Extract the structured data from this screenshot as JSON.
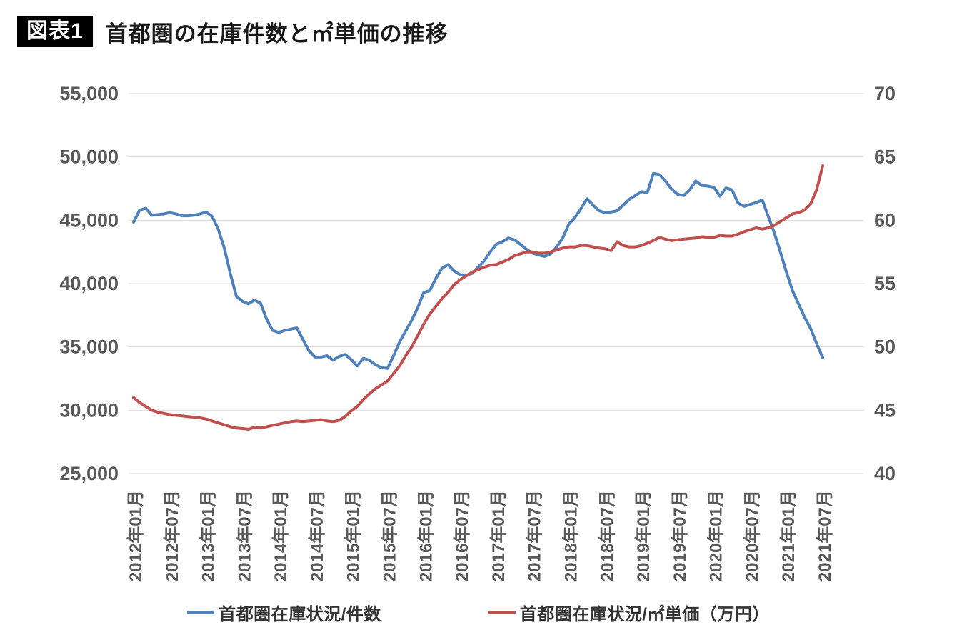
{
  "header": {
    "badge": "図表1",
    "title": "首都圏の在庫件数と㎡単価の推移"
  },
  "colors": {
    "background": "#ffffff",
    "grid": "#d9d9d9",
    "axis_text": "#595959",
    "badge_bg": "#000000",
    "badge_text": "#ffffff",
    "legend_text": "#333333",
    "series_blue": "#4F81BD",
    "series_red": "#C0504D"
  },
  "chart_data": {
    "type": "line",
    "title": "首都圏の在庫件数と㎡単価の推移",
    "x_unit": "month",
    "x_start": "2012年01月",
    "x_end": "2021年07月",
    "grid": "horizontal",
    "legend_position": "bottom",
    "x_tick_labels": [
      "2012年01月",
      "2012年07月",
      "2013年01月",
      "2013年07月",
      "2014年01月",
      "2014年07月",
      "2015年01月",
      "2015年07月",
      "2016年01月",
      "2016年07月",
      "2017年01月",
      "2017年07月",
      "2018年01月",
      "2018年07月",
      "2019年01月",
      "2019年07月",
      "2020年01月",
      "2020年07月",
      "2021年01月",
      "2021年07月"
    ],
    "left_axis": {
      "min": 25000,
      "max": 55000,
      "step": 5000,
      "tick_labels": [
        "55,000",
        "50,000",
        "45,000",
        "40,000",
        "35,000",
        "30,000",
        "25,000"
      ]
    },
    "right_axis": {
      "min": 40,
      "max": 70,
      "step": 5,
      "tick_labels": [
        "70",
        "65",
        "60",
        "55",
        "50",
        "45",
        "40"
      ]
    },
    "series": [
      {
        "name": "首都圏在庫状況/件数",
        "axis": "left",
        "color": "#4F81BD",
        "values": [
          44850,
          45800,
          45950,
          45400,
          45450,
          45500,
          45600,
          45500,
          45350,
          45350,
          45400,
          45500,
          45650,
          45300,
          44300,
          42800,
          40800,
          39000,
          38600,
          38400,
          38700,
          38450,
          37200,
          36300,
          36150,
          36300,
          36400,
          36500,
          35600,
          34700,
          34200,
          34200,
          34300,
          33950,
          34250,
          34400,
          34000,
          33500,
          34100,
          33950,
          33600,
          33350,
          33300,
          34300,
          35400,
          36250,
          37100,
          38100,
          39300,
          39450,
          40400,
          41200,
          41500,
          41000,
          40700,
          40650,
          40800,
          41300,
          41800,
          42500,
          43100,
          43300,
          43600,
          43450,
          43100,
          42700,
          42400,
          42250,
          42150,
          42350,
          42900,
          43600,
          44700,
          45200,
          45900,
          46700,
          46200,
          45750,
          45600,
          45650,
          45750,
          46200,
          46650,
          46950,
          47250,
          47200,
          48700,
          48600,
          48100,
          47450,
          47050,
          46950,
          47400,
          48100,
          47750,
          47700,
          47600,
          46900,
          47550,
          47400,
          46350,
          46100,
          46250,
          46400,
          46600,
          45300,
          44000,
          42500,
          40900,
          39450,
          38400,
          37350,
          36450,
          35250,
          34150
        ]
      },
      {
        "name": "首都圏在庫状況/㎡単価（万円）",
        "axis": "right",
        "color": "#C0504D",
        "values": [
          46.0,
          45.6,
          45.3,
          45.0,
          44.85,
          44.75,
          44.65,
          44.6,
          44.55,
          44.5,
          44.45,
          44.4,
          44.3,
          44.15,
          44.0,
          43.85,
          43.7,
          43.6,
          43.55,
          43.5,
          43.65,
          43.6,
          43.7,
          43.8,
          43.9,
          44.0,
          44.1,
          44.15,
          44.1,
          44.15,
          44.2,
          44.25,
          44.15,
          44.1,
          44.2,
          44.5,
          44.95,
          45.3,
          45.85,
          46.3,
          46.7,
          47.0,
          47.3,
          47.9,
          48.5,
          49.3,
          50.0,
          50.9,
          51.8,
          52.6,
          53.2,
          53.8,
          54.3,
          54.9,
          55.3,
          55.6,
          55.9,
          56.1,
          56.3,
          56.45,
          56.5,
          56.7,
          56.9,
          57.2,
          57.35,
          57.5,
          57.5,
          57.4,
          57.4,
          57.5,
          57.65,
          57.8,
          57.9,
          57.9,
          58.0,
          58.0,
          57.9,
          57.8,
          57.75,
          57.6,
          58.3,
          58.0,
          57.9,
          57.9,
          58.0,
          58.2,
          58.4,
          58.65,
          58.5,
          58.4,
          58.45,
          58.5,
          58.55,
          58.6,
          58.7,
          58.65,
          58.65,
          58.8,
          58.75,
          58.75,
          58.9,
          59.1,
          59.25,
          59.4,
          59.3,
          59.4,
          59.6,
          59.9,
          60.2,
          60.5,
          60.6,
          60.8,
          61.3,
          62.4,
          64.3
        ]
      }
    ]
  }
}
